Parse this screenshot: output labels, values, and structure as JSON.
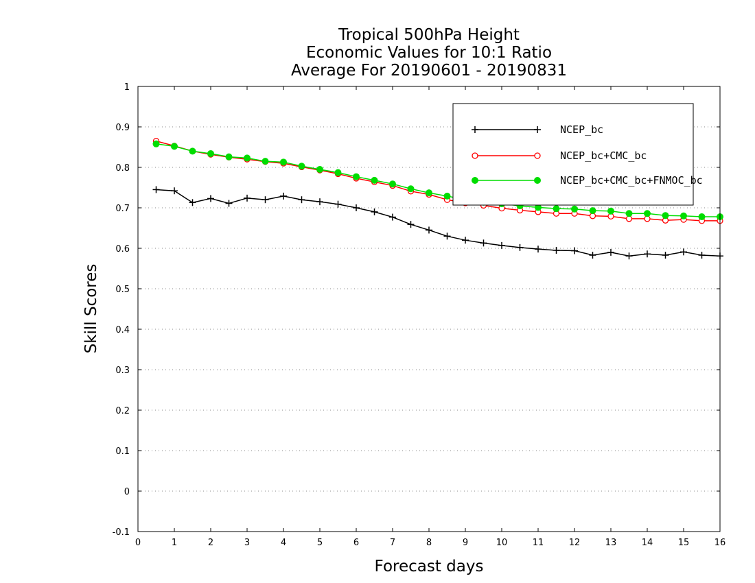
{
  "chart_data": {
    "type": "line",
    "title": [
      "Tropical 500hPa Height",
      "Economic Values for 10:1 Ratio",
      "Average For 20190601 - 20190831"
    ],
    "xlabel": "Forecast days",
    "ylabel": "Skill Scores",
    "xlim": [
      0,
      16
    ],
    "ylim": [
      -0.1,
      1
    ],
    "xticks": [
      "0",
      "1",
      "2",
      "3",
      "4",
      "5",
      "6",
      "7",
      "8",
      "9",
      "10",
      "11",
      "12",
      "13",
      "14",
      "15",
      "16"
    ],
    "yticks": [
      "-0.1",
      "0",
      "0.1",
      "0.2",
      "0.3",
      "0.4",
      "0.5",
      "0.6",
      "0.7",
      "0.8",
      "0.9",
      "1"
    ],
    "grid": "horizontal dotted",
    "legend_position": "top-right",
    "x": [
      0.5,
      1,
      1.5,
      2,
      2.5,
      3,
      3.5,
      4,
      4.5,
      5,
      5.5,
      6,
      6.5,
      7,
      7.5,
      8,
      8.5,
      9,
      9.5,
      10,
      10.5,
      11,
      11.5,
      12,
      12.5,
      13,
      13.5,
      14,
      14.5,
      15,
      15.5,
      16
    ],
    "series": [
      {
        "name": "NCEP_bc",
        "color": "#000000",
        "marker": "plus",
        "values": [
          0.745,
          0.742,
          0.713,
          0.723,
          0.711,
          0.724,
          0.72,
          0.729,
          0.72,
          0.715,
          0.709,
          0.7,
          0.69,
          0.677,
          0.659,
          0.645,
          0.63,
          0.62,
          0.613,
          0.607,
          0.602,
          0.598,
          0.595,
          0.594,
          0.583,
          0.59,
          0.581,
          0.586,
          0.583,
          0.591,
          0.583,
          0.581
        ]
      },
      {
        "name": "NCEP_bc+CMC_bc",
        "color": "#ff0000",
        "marker": "open-circle",
        "values": [
          0.865,
          0.853,
          0.84,
          0.832,
          0.825,
          0.82,
          0.814,
          0.81,
          0.801,
          0.793,
          0.784,
          0.773,
          0.764,
          0.755,
          0.741,
          0.733,
          0.72,
          0.712,
          0.706,
          0.699,
          0.694,
          0.69,
          0.686,
          0.686,
          0.68,
          0.679,
          0.673,
          0.673,
          0.669,
          0.671,
          0.668,
          0.668
        ]
      },
      {
        "name": "NCEP_bc+CMC_bc+FNMOC_bc",
        "color": "#00dd00",
        "marker": "filled-circle",
        "values": [
          0.858,
          0.852,
          0.84,
          0.834,
          0.826,
          0.823,
          0.815,
          0.813,
          0.803,
          0.795,
          0.787,
          0.777,
          0.768,
          0.759,
          0.747,
          0.737,
          0.729,
          0.72,
          0.714,
          0.71,
          0.705,
          0.701,
          0.698,
          0.697,
          0.693,
          0.692,
          0.686,
          0.686,
          0.681,
          0.68,
          0.678,
          0.678
        ]
      }
    ]
  }
}
